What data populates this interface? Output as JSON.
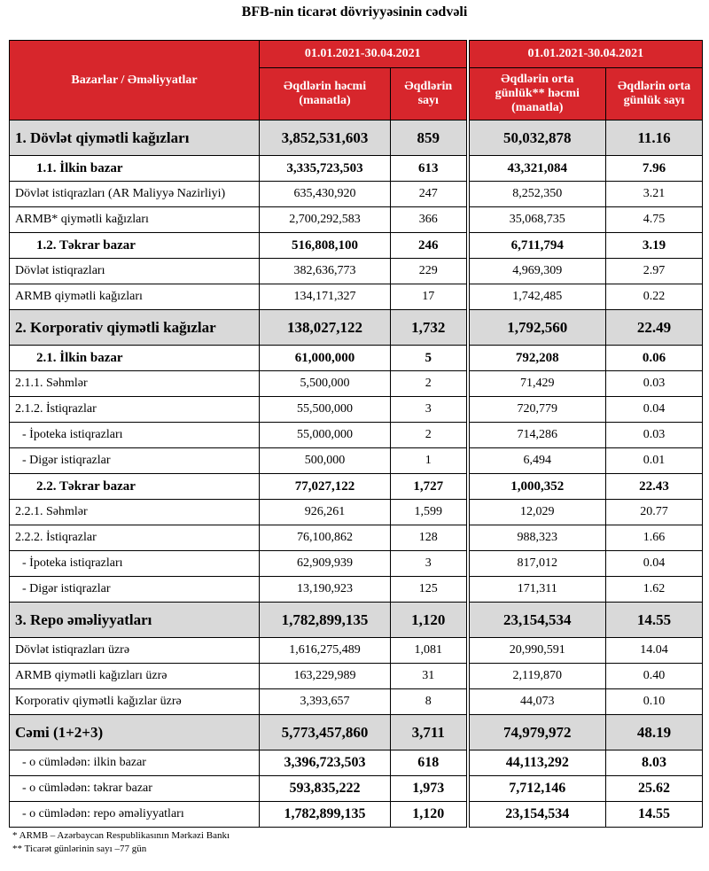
{
  "title": "BFB-nin ticarət dövriyyəsinin cədvəli",
  "header": {
    "label": "Bazarlar / Əməliyyatlar",
    "groups": [
      "01.01.2021-30.04.2021",
      "01.01.2021-30.04.2021"
    ],
    "columns": [
      "Əqdlərin həcmi (manatla)",
      "Əqdlərin sayı",
      "Əqdlərin orta günlük** həcmi (manatla)",
      "Əqdlərin orta günlük sayı"
    ]
  },
  "table": {
    "rows": [
      [
        "1. Dövlət qiymətli kağızları",
        "3,852,531,603",
        "859",
        "50,032,878",
        "11.16"
      ],
      [
        "1.1. İlkin bazar",
        "3,335,723,503",
        "613",
        "43,321,084",
        "7.96"
      ],
      [
        "Dövlət istiqrazları (AR Maliyyə Nazirliyi)",
        "635,430,920",
        "247",
        "8,252,350",
        "3.21"
      ],
      [
        "ARMB* qiymətli kağızları",
        "2,700,292,583",
        "366",
        "35,068,735",
        "4.75"
      ],
      [
        "1.2. Təkrar bazar",
        "516,808,100",
        "246",
        "6,711,794",
        "3.19"
      ],
      [
        "Dövlət istiqrazları",
        "382,636,773",
        "229",
        "4,969,309",
        "2.97"
      ],
      [
        "ARMB qiymətli kağızları",
        "134,171,327",
        "17",
        "1,742,485",
        "0.22"
      ],
      [
        "2. Korporativ qiymətli kağızlar",
        "138,027,122",
        "1,732",
        "1,792,560",
        "22.49"
      ],
      [
        "2.1. İlkin bazar",
        "61,000,000",
        "5",
        "792,208",
        "0.06"
      ],
      [
        "2.1.1. Səhmlər",
        "5,500,000",
        "2",
        "71,429",
        "0.03"
      ],
      [
        "2.1.2. İstiqrazlar",
        "55,500,000",
        "3",
        "720,779",
        "0.04"
      ],
      [
        "- İpoteka istiqrazları",
        "55,000,000",
        "2",
        "714,286",
        "0.03"
      ],
      [
        "- Digər istiqrazlar",
        "500,000",
        "1",
        "6,494",
        "0.01"
      ],
      [
        "2.2. Təkrar bazar",
        "77,027,122",
        "1,727",
        "1,000,352",
        "22.43"
      ],
      [
        "2.2.1. Səhmlər",
        "926,261",
        "1,599",
        "12,029",
        "20.77"
      ],
      [
        "2.2.2. İstiqrazlar",
        "76,100,862",
        "128",
        "988,323",
        "1.66"
      ],
      [
        "- İpoteka istiqrazları",
        "62,909,939",
        "3",
        "817,012",
        "0.04"
      ],
      [
        "- Digər istiqrazlar",
        "13,190,923",
        "125",
        "171,311",
        "1.62"
      ],
      [
        "3. Repo əməliyyatları",
        "1,782,899,135",
        "1,120",
        "23,154,534",
        "14.55"
      ],
      [
        "Dövlət istiqrazları üzrə",
        "1,616,275,489",
        "1,081",
        "20,990,591",
        "14.04"
      ],
      [
        "ARMB qiymətli kağızları üzrə",
        "163,229,989",
        "31",
        "2,119,870",
        "0.40"
      ],
      [
        "Korporativ qiymətli kağızlar üzrə",
        "3,393,657",
        "8",
        "44,073",
        "0.10"
      ],
      [
        "Cəmi (1+2+3)",
        "5,773,457,860",
        "3,711",
        "74,979,972",
        "48.19"
      ],
      [
        "- o cümlədən: ilkin bazar",
        "3,396,723,503",
        "618",
        "44,113,292",
        "8.03"
      ],
      [
        "- o cümlədən: təkrar bazar",
        "593,835,222",
        "1,973",
        "7,712,146",
        "25.62"
      ],
      [
        "- o cümlədən: repo əməliyyatları",
        "1,782,899,135",
        "1,120",
        "23,154,534",
        "14.55"
      ]
    ]
  },
  "footnotes": [
    "* ARMB – Azərbaycan Respublikasının Mərkəzi Bankı",
    "** Ticarət günlərinin sayı –77 gün"
  ]
}
